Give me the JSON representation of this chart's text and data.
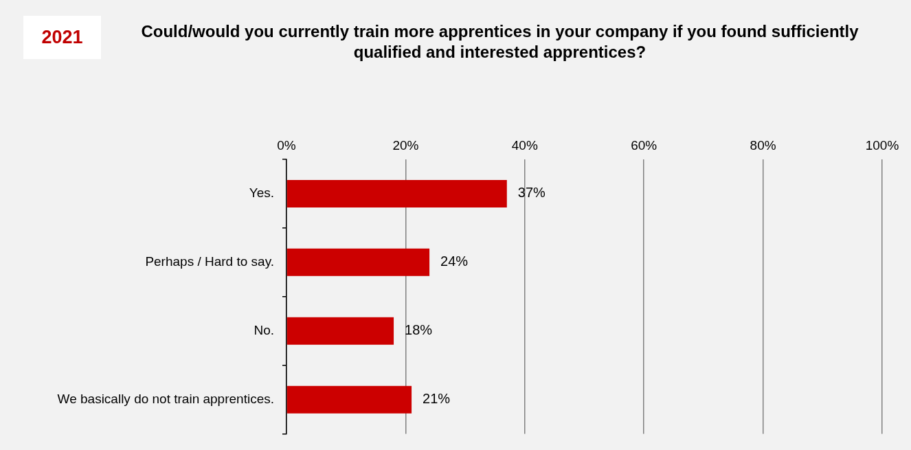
{
  "chart_data": {
    "type": "bar",
    "orientation": "horizontal",
    "title": "Could/would you currently train more apprentices in your company if you found sufficiently qualified and interested apprentices?",
    "annotations": [
      "2021"
    ],
    "categories": [
      "Yes.",
      "Perhaps / Hard to say.",
      "No.",
      "We basically do not train apprentices."
    ],
    "values": [
      37,
      24,
      18,
      21
    ],
    "value_labels": [
      "37%",
      "24%",
      "18%",
      "21%"
    ],
    "color": "#cc0000",
    "xlim": [
      0,
      100
    ],
    "xticks": [
      {
        "value": 0,
        "label": "0%"
      },
      {
        "value": 20,
        "label": "20%"
      },
      {
        "value": 40,
        "label": "40%"
      },
      {
        "value": 60,
        "label": "60%"
      },
      {
        "value": 80,
        "label": "80%"
      },
      {
        "value": 100,
        "label": "100%"
      }
    ],
    "grid": "x",
    "legend": false
  }
}
